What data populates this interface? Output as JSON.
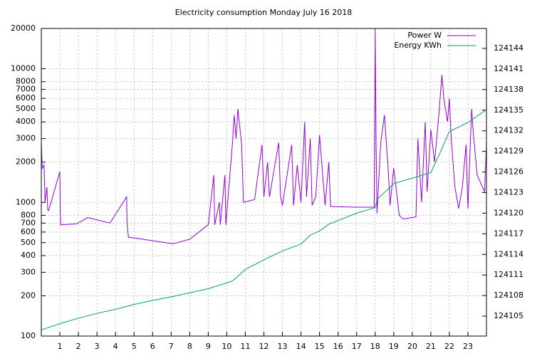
{
  "chart_data": {
    "type": "line",
    "title": "Electricity consumption Monday July 16 2018",
    "xlim": [
      0,
      24
    ],
    "xticks": [
      1,
      2,
      3,
      4,
      5,
      6,
      7,
      8,
      9,
      10,
      11,
      12,
      13,
      14,
      15,
      16,
      17,
      18,
      19,
      20,
      21,
      22,
      23
    ],
    "ylim": [
      100,
      20000
    ],
    "ylog": true,
    "yticks": [
      100,
      200,
      300,
      400,
      500,
      600,
      700,
      800,
      1000,
      2000,
      3000,
      4000,
      5000,
      6000,
      7000,
      8000,
      10000,
      20000
    ],
    "y2lim": [
      124102.1,
      124146.9
    ],
    "y2ticks": [
      124105,
      124108,
      124111,
      124114,
      124117,
      124120,
      124123,
      124126,
      124129,
      124132,
      124135,
      124138,
      124141,
      124144
    ],
    "grid": true,
    "legend": "top-right",
    "series": [
      {
        "name": "Power W",
        "color": "#9400d3",
        "x": [
          0,
          0.05,
          0.15,
          0.2,
          0.3,
          0.35,
          0.4,
          1.0,
          1.02,
          1.05,
          1.9,
          2.5,
          3.7,
          4.6,
          4.62,
          4.7,
          7.1,
          8.0,
          9.0,
          9.3,
          9.35,
          9.6,
          9.65,
          9.9,
          9.95,
          10.3,
          10.4,
          10.5,
          10.6,
          10.8,
          10.9,
          11.5,
          11.9,
          12.0,
          12.2,
          12.3,
          12.8,
          12.9,
          13.0,
          13.5,
          13.6,
          13.8,
          14.0,
          14.2,
          14.3,
          14.5,
          14.6,
          14.8,
          15.0,
          15.3,
          15.5,
          15.6,
          17.0,
          17.95,
          18.0,
          18.05,
          18.1,
          18.3,
          18.5,
          18.6,
          18.7,
          18.8,
          19.0,
          19.3,
          19.5,
          20.2,
          20.3,
          20.5,
          20.7,
          20.8,
          21.0,
          21.2,
          21.4,
          21.6,
          21.7,
          21.9,
          22.0,
          22.1,
          22.3,
          22.5,
          22.7,
          22.9,
          23.0,
          23.2,
          23.3,
          23.5,
          23.9,
          24.0
        ],
        "values": [
          2800,
          1800,
          1900,
          1000,
          1300,
          870,
          870,
          1700,
          870,
          680,
          690,
          770,
          700,
          1100,
          700,
          550,
          490,
          530,
          680,
          1600,
          680,
          1000,
          680,
          1600,
          680,
          2700,
          4500,
          3000,
          5000,
          2700,
          1000,
          1050,
          2700,
          1100,
          2000,
          1100,
          2800,
          1100,
          950,
          2700,
          950,
          1900,
          1000,
          4000,
          1100,
          3000,
          950,
          1100,
          3200,
          950,
          2000,
          930,
          920,
          920,
          20000,
          2700,
          830,
          2800,
          4500,
          2800,
          1800,
          950,
          1800,
          800,
          750,
          780,
          3000,
          1000,
          4000,
          1200,
          3500,
          2000,
          4000,
          9000,
          6000,
          4000,
          6000,
          3000,
          1300,
          900,
          1300,
          2700,
          900,
          5000,
          3200,
          1600,
          1200,
          2700
        ]
      },
      {
        "name": "Energy KWh",
        "color": "#009e73",
        "axis": "y2",
        "x": [
          0,
          1,
          2,
          3,
          4,
          5,
          6,
          7,
          8,
          9,
          10.3,
          11,
          12,
          13,
          14,
          14.5,
          15,
          15.5,
          17,
          18,
          18.1,
          19,
          20,
          21,
          21.5,
          22,
          23,
          24
        ],
        "values": [
          124103.0,
          124103.9,
          124104.7,
          124105.4,
          124106.0,
          124106.7,
          124107.3,
          124107.8,
          124108.4,
          124109.0,
          124110.1,
          124111.8,
          124113.2,
          124114.5,
          124115.5,
          124116.8,
          124117.4,
          124118.4,
          124120.0,
          124120.8,
          124122.0,
          124124.3,
          124125.1,
          124125.9,
          124128.8,
          124131.9,
          124133.2,
          124135.1
        ]
      }
    ]
  }
}
